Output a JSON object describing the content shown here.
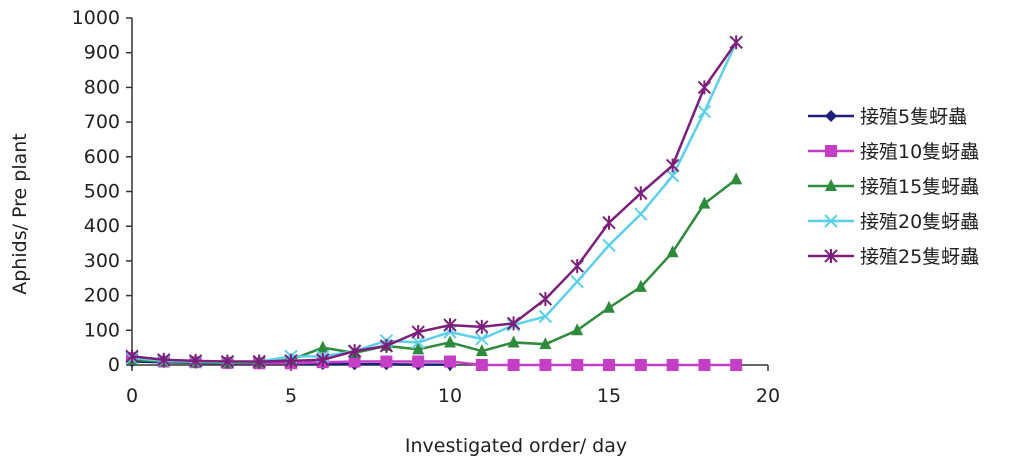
{
  "chart_data": {
    "type": "line",
    "title": "",
    "xlabel": "Investigated order/ day",
    "ylabel": "Aphids/ Pre plant",
    "xlim": [
      0,
      20
    ],
    "ylim": [
      0,
      1000
    ],
    "xticks": [
      0,
      5,
      10,
      15,
      20
    ],
    "yticks": [
      0,
      100,
      200,
      300,
      400,
      500,
      600,
      700,
      800,
      900,
      1000
    ],
    "grid": false,
    "legend_position": "right",
    "series": [
      {
        "name": "接殖5隻蚜蟲",
        "color": "#1f1f7a",
        "marker": "diamond",
        "x": [
          0,
          1,
          2,
          3,
          4,
          5,
          6,
          7,
          8,
          9,
          10
        ],
        "y": [
          10,
          8,
          6,
          5,
          4,
          4,
          3,
          2,
          2,
          1,
          1
        ]
      },
      {
        "name": "接殖10隻蚜蟲",
        "color": "#c43fc6",
        "marker": "square",
        "x": [
          0,
          1,
          2,
          3,
          4,
          5,
          6,
          7,
          8,
          9,
          10,
          11,
          12,
          13,
          14,
          15,
          16,
          17,
          18,
          19
        ],
        "y": [
          20,
          10,
          8,
          6,
          5,
          5,
          8,
          10,
          10,
          10,
          10,
          0,
          0,
          0,
          0,
          0,
          0,
          0,
          0,
          0
        ]
      },
      {
        "name": "接殖15隻蚜蟲",
        "color": "#2e8b3b",
        "marker": "triangle",
        "x": [
          0,
          1,
          2,
          3,
          4,
          5,
          6,
          7,
          8,
          9,
          10,
          11,
          12,
          13,
          14,
          15,
          16,
          17,
          18,
          19
        ],
        "y": [
          15,
          10,
          8,
          6,
          8,
          15,
          50,
          35,
          55,
          45,
          65,
          40,
          65,
          60,
          100,
          165,
          225,
          325,
          465,
          535
        ]
      },
      {
        "name": "接殖20隻蚜蟲",
        "color": "#5bd0ea",
        "marker": "x",
        "x": [
          0,
          1,
          2,
          3,
          4,
          5,
          6,
          7,
          8,
          9,
          10,
          11,
          12,
          13,
          14,
          15,
          16,
          17,
          18,
          19
        ],
        "y": [
          20,
          12,
          10,
          8,
          10,
          25,
          25,
          40,
          70,
          65,
          95,
          75,
          115,
          140,
          240,
          345,
          435,
          545,
          730,
          930
        ]
      },
      {
        "name": "接殖25隻蚜蟲",
        "color": "#7b1f7b",
        "marker": "star",
        "x": [
          0,
          1,
          2,
          3,
          4,
          5,
          6,
          7,
          8,
          9,
          10,
          11,
          12,
          13,
          14,
          15,
          16,
          17,
          18,
          19
        ],
        "y": [
          25,
          15,
          12,
          10,
          10,
          12,
          15,
          40,
          55,
          95,
          115,
          110,
          120,
          190,
          285,
          410,
          495,
          575,
          800,
          930
        ]
      }
    ]
  }
}
